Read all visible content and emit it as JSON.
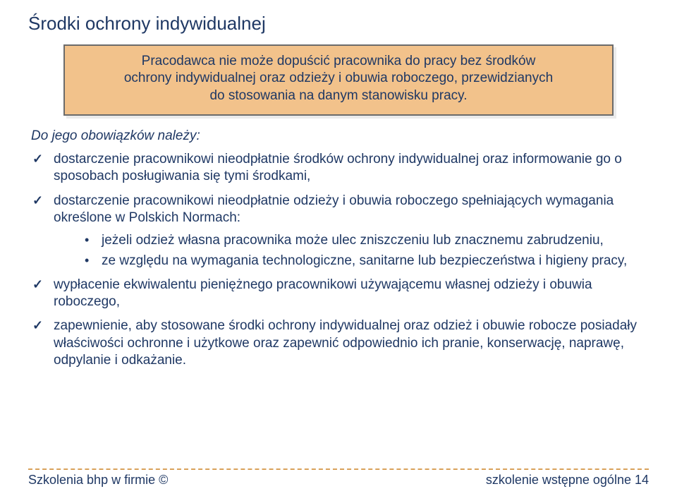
{
  "title": "Środki ochrony indywidualnej",
  "callout": {
    "line1": "Pracodawca nie może dopuścić pracownika do pracy bez środków",
    "line2": "ochrony indywidualnej oraz odzieży i obuwia roboczego, przewidzianych",
    "line3": "do stosowania na danym stanowisku pracy."
  },
  "lead": "Do jego obowiązków należy:",
  "bullets": {
    "b1": "dostarczenie pracownikowi nieodpłatnie środków ochrony indywidualnej oraz informowanie go o sposobach posługiwania się tymi środkami,",
    "b2": "dostarczenie pracownikowi nieodpłatnie odzieży i obuwia roboczego spełniających wymagania określone w Polskich Normach:",
    "sub1": "jeżeli odzież własna pracownika może ulec zniszczeniu lub znacznemu zabrudzeniu,",
    "sub2": "ze względu na wymagania technologiczne, sanitarne lub bezpieczeństwa i higieny pracy,",
    "b3": "wypłacenie ekwiwalentu pieniężnego pracownikowi używającemu własnej odzieży i obuwia roboczego,",
    "b4": "zapewnienie, aby stosowane środki ochrony indywidualnej oraz odzież i obuwie robocze posiadały właściwości ochronne i użytkowe oraz zapewnić odpowiednio ich pranie, konserwację, naprawę, odpylanie i odkażanie."
  },
  "footer": {
    "left": "Szkolenia bhp w firmie ©",
    "right": "szkolenie wstępne ogólne 14"
  },
  "colors": {
    "text": "#1f3864",
    "callout_bg": "#f2c28b",
    "callout_border": "#6b6b6b",
    "divider": "#d9a15a",
    "page_bg": "#ffffff"
  }
}
